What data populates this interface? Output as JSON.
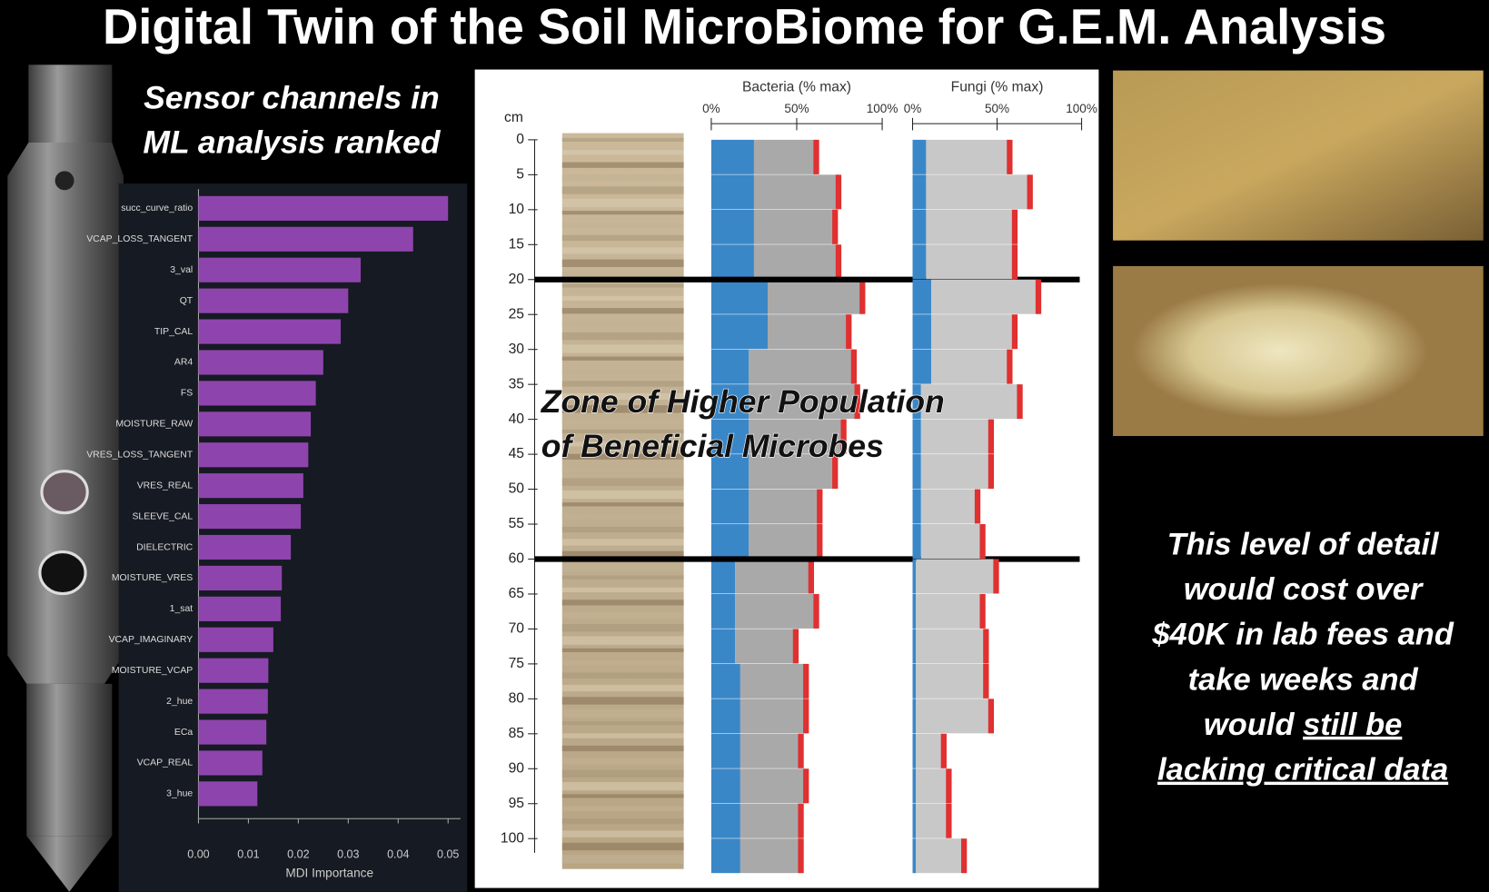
{
  "title": "Digital Twin of the Soil MicroBiome for G.E.M. Analysis",
  "subtitle_lines": [
    "Sensor channels in",
    "ML analysis ranked"
  ],
  "zone_lines": [
    "Zone of Higher Population",
    "of Beneficial Microbes"
  ],
  "note": {
    "lines": [
      "This level of detail",
      "would cost over",
      "$40K in lab fees and",
      "take weeks and"
    ],
    "tail": "would",
    "underlined": [
      "still be",
      "lacking critical data"
    ]
  },
  "depth_unit": "cm",
  "chart_data": [
    {
      "type": "hbar",
      "xlabel": "MDI Importance",
      "color": "#8e44ad",
      "categories": [
        "succ_curve_ratio",
        "VCAP_LOSS_TANGENT",
        "3_val",
        "QT",
        "TIP_CAL",
        "AR4",
        "FS",
        "MOISTURE_RAW",
        "VRES_LOSS_TANGENT",
        "VRES_REAL",
        "SLEEVE_CAL",
        "DIELECTRIC",
        "MOISTURE_VRES",
        "1_sat",
        "VCAP_IMAGINARY",
        "MOISTURE_VCAP",
        "2_hue",
        "ECa",
        "VCAP_REAL",
        "3_hue"
      ],
      "values": [
        0.05,
        0.043,
        0.0325,
        0.03,
        0.0285,
        0.025,
        0.0235,
        0.0225,
        0.022,
        0.021,
        0.0205,
        0.0185,
        0.0167,
        0.0165,
        0.015,
        0.014,
        0.0139,
        0.0136,
        0.0128,
        0.0118
      ],
      "xlim": [
        0,
        0.0525
      ],
      "xticks": [
        {
          "value": 0,
          "label": "0.00"
        },
        {
          "value": 0.01,
          "label": "0.01"
        },
        {
          "value": 0.02,
          "label": "0.02"
        },
        {
          "value": 0.03,
          "label": "0.03"
        },
        {
          "value": 0.04,
          "label": "0.04"
        },
        {
          "value": 0.05,
          "label": "0.05"
        }
      ]
    },
    {
      "type": "profile",
      "title": "Bacteria (% max)",
      "depths": [
        0,
        5,
        10,
        15,
        20,
        25,
        30,
        35,
        40,
        45,
        50,
        55,
        60,
        65,
        70,
        75,
        80,
        85,
        90,
        95,
        100
      ],
      "series": [
        {
          "color": "#3a87c8",
          "values": [
            25,
            25,
            25,
            25,
            33,
            33,
            22,
            22,
            22,
            22,
            22,
            22,
            14,
            14,
            14,
            17,
            17,
            17,
            17,
            17,
            17
          ]
        },
        {
          "color": "#a9a9a9",
          "values": [
            37,
            50,
            48,
            50,
            56,
            48,
            62,
            64,
            56,
            51,
            42,
            42,
            45,
            48,
            36,
            39,
            39,
            36,
            39,
            36,
            36
          ]
        }
      ],
      "tip_color": "#e03030",
      "xlim": [
        0,
        100
      ],
      "ylim": [
        0,
        100
      ],
      "xticks": [
        {
          "value": 0,
          "label": "0%"
        },
        {
          "value": 50,
          "label": "50%"
        },
        {
          "value": 100,
          "label": "100%"
        }
      ],
      "yticks": [
        0,
        5,
        10,
        15,
        20,
        25,
        30,
        35,
        40,
        45,
        50,
        55,
        60,
        65,
        70,
        75,
        80,
        85,
        90,
        95,
        100
      ],
      "zone_bounds": [
        20,
        60
      ]
    },
    {
      "type": "profile",
      "title": "Fungi (% max)",
      "depths": [
        0,
        5,
        10,
        15,
        20,
        25,
        30,
        35,
        40,
        45,
        50,
        55,
        60,
        65,
        70,
        75,
        80,
        85,
        90,
        95,
        100
      ],
      "series": [
        {
          "color": "#3a87c8",
          "values": [
            8,
            8,
            8,
            8,
            11,
            11,
            11,
            5,
            5,
            5,
            5,
            5,
            2,
            2,
            2,
            2,
            2,
            2,
            2,
            2,
            2
          ]
        },
        {
          "color": "#c8c8c8",
          "values": [
            50,
            62,
            53,
            53,
            64,
            50,
            47,
            59,
            42,
            42,
            34,
            37,
            48,
            40,
            42,
            42,
            45,
            17,
            20,
            20,
            29
          ]
        }
      ],
      "tip_color": "#e03030",
      "xlim": [
        0,
        100
      ],
      "xticks": [
        {
          "value": 0,
          "label": "0%"
        },
        {
          "value": 50,
          "label": "50%"
        },
        {
          "value": 100,
          "label": "100%"
        }
      ]
    }
  ]
}
